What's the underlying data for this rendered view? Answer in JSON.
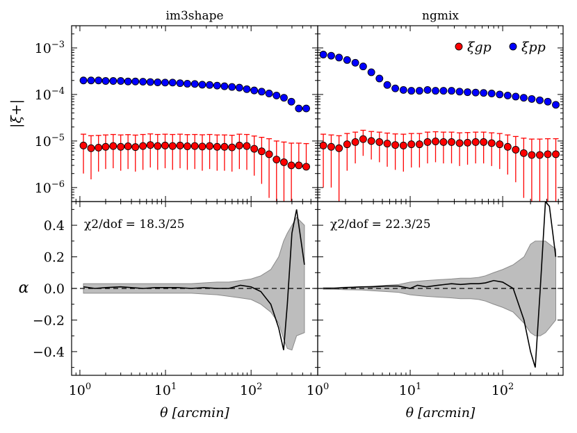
{
  "chart_data": [
    {
      "type": "scatter",
      "panel": "top-left",
      "title": "im3shape",
      "ylabel": "|ξ+|",
      "xscale": "log",
      "yscale": "log",
      "xlim": [
        0.8,
        600
      ],
      "ylim": [
        5e-07,
        0.003
      ],
      "ytick_labels": [
        "10^-3",
        "10^-4",
        "10^-5",
        "10^-6"
      ],
      "legend": [],
      "x": [
        1.1,
        1.35,
        1.65,
        2.0,
        2.45,
        3.0,
        3.65,
        4.45,
        5.45,
        6.65,
        8.1,
        9.9,
        12.1,
        14.8,
        18.0,
        22.0,
        26.9,
        32.8,
        40.1,
        48.9,
        59.8,
        73.0,
        89.1,
        108.8,
        132.9,
        162.3,
        198.2,
        242.0,
        295.5,
        360.9,
        440.7
      ],
      "series": [
        {
          "name": "ξgp",
          "color": "#ff0000",
          "y": [
            8e-06,
            7e-06,
            7.2e-06,
            7.5e-06,
            7.8e-06,
            7.5e-06,
            7.7e-06,
            7.4e-06,
            7.8e-06,
            8.2e-06,
            7.8e-06,
            8e-06,
            7.8e-06,
            8e-06,
            7.7e-06,
            7.8e-06,
            7.6e-06,
            7.8e-06,
            7.5e-06,
            7.5e-06,
            7.3e-06,
            8e-06,
            7.8e-06,
            6.8e-06,
            6e-06,
            5.2e-06,
            4e-06,
            3.5e-06,
            3e-06,
            3e-06,
            2.8e-06
          ],
          "yerr_low": [
            6e-06,
            5.5e-06,
            5e-06,
            5e-06,
            5.2e-06,
            5.2e-06,
            5.2e-06,
            5.2e-06,
            5.4e-06,
            5.5e-06,
            5.4e-06,
            5.4e-06,
            5.4e-06,
            5.4e-06,
            5.3e-06,
            5.3e-06,
            5.3e-06,
            5.3e-06,
            5.2e-06,
            5.2e-06,
            5.1e-06,
            5.5e-06,
            5.4e-06,
            5e-06,
            4.8e-06,
            4.6e-06,
            3.9e-06,
            3.4e-06,
            2.95e-06,
            3e-07,
            3e-07
          ],
          "yerr_high": [
            6e-06,
            6e-06,
            6e-06,
            6e-06,
            6e-06,
            6e-06,
            6e-06,
            6e-06,
            6e-06,
            6e-06,
            6e-06,
            6e-06,
            6e-06,
            6e-06,
            6e-06,
            6e-06,
            6e-06,
            6e-06,
            6e-06,
            6e-06,
            6e-06,
            6e-06,
            6e-06,
            6e-06,
            6e-06,
            6e-06,
            6e-06,
            6e-06,
            6e-06,
            6e-06,
            6e-06
          ]
        },
        {
          "name": "ξpp",
          "color": "#0000ff",
          "y": [
            0.0002,
            0.0002,
            0.0002,
            0.000195,
            0.000195,
            0.000195,
            0.00019,
            0.00019,
            0.000188,
            0.000185,
            0.000182,
            0.00018,
            0.00018,
            0.000175,
            0.00017,
            0.000168,
            0.000162,
            0.00016,
            0.000155,
            0.00015,
            0.000145,
            0.00014,
            0.00013,
            0.000122,
            0.000115,
            0.000105,
            9.5e-05,
            8.5e-05,
            7e-05,
            5e-05,
            5e-05
          ]
        }
      ]
    },
    {
      "type": "scatter",
      "panel": "top-right",
      "title": "ngmix",
      "xscale": "log",
      "yscale": "log",
      "xlim": [
        1.0,
        450
      ],
      "ylim": [
        5e-07,
        0.003
      ],
      "legend": [
        "ξgp",
        "ξpp"
      ],
      "legend_placement": "top-right",
      "x": [
        1.15,
        1.4,
        1.7,
        2.08,
        2.55,
        3.1,
        3.8,
        4.65,
        5.65,
        6.9,
        8.45,
        10.3,
        12.6,
        15.4,
        18.8,
        22.9,
        28.0,
        34.2,
        41.7,
        51.0,
        62.2,
        76.0,
        92.8,
        113.3,
        138.3,
        168.9,
        206.2,
        251.8,
        307.4,
        375.4
      ],
      "series": [
        {
          "name": "ξgp",
          "color": "#ff0000",
          "y": [
            8e-06,
            7.5e-06,
            7e-06,
            8.5e-06,
            9.5e-06,
            1.1e-05,
            1e-05,
            9.5e-06,
            8.8e-06,
            8.2e-06,
            8e-06,
            8.5e-06,
            8.5e-06,
            9.5e-06,
            9.8e-06,
            9.5e-06,
            9.5e-06,
            9e-06,
            9.2e-06,
            9.5e-06,
            9.5e-06,
            9e-06,
            8.5e-06,
            7.5e-06,
            6.5e-06,
            5.5e-06,
            5e-06,
            5e-06,
            5.2e-06,
            5.2e-06
          ],
          "yerr_low": [
            7e-06,
            6.5e-06,
            6.9e-06,
            6.2e-06,
            6.2e-06,
            6.2e-06,
            6e-06,
            6e-06,
            6e-06,
            5.8e-06,
            5.8e-06,
            5.8e-06,
            5.8e-06,
            6.2e-06,
            6.3e-06,
            6.2e-06,
            6.2e-06,
            6.1e-06,
            6.1e-06,
            6.2e-06,
            6.2e-06,
            6.1e-06,
            6e-06,
            5.6e-06,
            5.2e-06,
            4.9e-06,
            4.7e-06,
            4.7e-06,
            4.9e-06,
            4.9e-06
          ],
          "yerr_high": [
            6e-06,
            6e-06,
            6e-06,
            6e-06,
            6e-06,
            6e-06,
            6e-06,
            6e-06,
            6e-06,
            6e-06,
            6e-06,
            6e-06,
            6e-06,
            6e-06,
            6e-06,
            6e-06,
            6e-06,
            6e-06,
            6e-06,
            6e-06,
            6e-06,
            6e-06,
            6e-06,
            6e-06,
            6e-06,
            6e-06,
            6e-06,
            6e-06,
            6e-06,
            6e-06
          ]
        },
        {
          "name": "ξpp",
          "color": "#0000ff",
          "y": [
            0.00072,
            0.00068,
            0.00062,
            0.00055,
            0.00048,
            0.0004,
            0.0003,
            0.00022,
            0.00016,
            0.000135,
            0.000125,
            0.00012,
            0.00012,
            0.000125,
            0.00012,
            0.00012,
            0.00012,
            0.000115,
            0.000112,
            0.00011,
            0.000108,
            0.000105,
            0.0001,
            9.5e-05,
            9e-05,
            8.5e-05,
            8e-05,
            7.5e-05,
            7e-05,
            6e-05
          ]
        }
      ]
    },
    {
      "type": "line",
      "panel": "bottom-left",
      "xlabel": "θ [arcmin]",
      "ylabel": "α",
      "xscale": "log",
      "xlim": [
        0.8,
        600
      ],
      "ylim": [
        -0.55,
        0.55
      ],
      "annotation": "χ2/dof = 18.3/25",
      "x": [
        1.1,
        1.5,
        2.0,
        3.0,
        4.0,
        5.5,
        7.5,
        10.0,
        14.0,
        20.0,
        28.0,
        40.0,
        55.0,
        75.0,
        100.0,
        130.0,
        170.0,
        210.0,
        240.0,
        265.0,
        300.0,
        340.0,
        420.0
      ],
      "series": [
        {
          "name": "",
          "color": "#000000",
          "y": [
            0.01,
            0.0,
            0.005,
            0.01,
            0.005,
            0.0,
            0.005,
            0.005,
            0.005,
            0.0,
            0.005,
            0.0,
            0.0,
            0.02,
            0.01,
            -0.02,
            -0.1,
            -0.25,
            -0.39,
            -0.1,
            0.35,
            0.5,
            0.15
          ]
        },
        {
          "name": "",
          "color": "#bdbdbd",
          "band_upper": [
            0.03,
            0.03,
            0.03,
            0.03,
            0.03,
            0.03,
            0.03,
            0.03,
            0.03,
            0.03,
            0.035,
            0.04,
            0.04,
            0.05,
            0.06,
            0.08,
            0.12,
            0.2,
            0.3,
            0.35,
            0.4,
            0.45,
            0.4
          ],
          "band_lower": [
            -0.03,
            -0.03,
            -0.03,
            -0.03,
            -0.03,
            -0.03,
            -0.03,
            -0.03,
            -0.03,
            -0.03,
            -0.035,
            -0.04,
            -0.05,
            -0.06,
            -0.07,
            -0.1,
            -0.15,
            -0.22,
            -0.32,
            -0.38,
            -0.39,
            -0.3,
            -0.28
          ]
        }
      ]
    },
    {
      "type": "line",
      "panel": "bottom-right",
      "xlabel": "θ [arcmin]",
      "xscale": "log",
      "xlim": [
        1.0,
        450
      ],
      "ylim": [
        -0.55,
        0.55
      ],
      "annotation": "χ2/dof = 22.3/25",
      "x": [
        1.15,
        1.5,
        2.0,
        3.0,
        4.0,
        5.5,
        7.5,
        10.0,
        12.0,
        15.0,
        20.0,
        28.0,
        35.0,
        45.0,
        55.0,
        65.0,
        80.0,
        100.0,
        130.0,
        170.0,
        200.0,
        225.0,
        255.0,
        290.0,
        320.0,
        375.0
      ],
      "series": [
        {
          "name": "",
          "color": "#000000",
          "y": [
            0.0,
            0.0,
            0.005,
            0.01,
            0.01,
            0.015,
            0.015,
            0.0,
            0.02,
            0.01,
            0.02,
            0.03,
            0.025,
            0.03,
            0.03,
            0.035,
            0.05,
            0.04,
            0.0,
            -0.2,
            -0.4,
            -0.5,
            0.0,
            0.55,
            0.52,
            0.2
          ]
        },
        {
          "name": "",
          "color": "#bdbdbd",
          "band_upper": [
            0.005,
            0.005,
            0.008,
            0.01,
            0.015,
            0.02,
            0.025,
            0.04,
            0.045,
            0.05,
            0.055,
            0.06,
            0.065,
            0.065,
            0.07,
            0.08,
            0.1,
            0.12,
            0.15,
            0.2,
            0.28,
            0.3,
            0.3,
            0.3,
            0.28,
            0.25
          ],
          "band_lower": [
            -0.005,
            -0.005,
            -0.008,
            -0.01,
            -0.015,
            -0.02,
            -0.025,
            -0.04,
            -0.045,
            -0.05,
            -0.055,
            -0.06,
            -0.065,
            -0.065,
            -0.07,
            -0.08,
            -0.1,
            -0.12,
            -0.15,
            -0.22,
            -0.28,
            -0.3,
            -0.3,
            -0.28,
            -0.25,
            -0.2
          ]
        }
      ]
    }
  ]
}
